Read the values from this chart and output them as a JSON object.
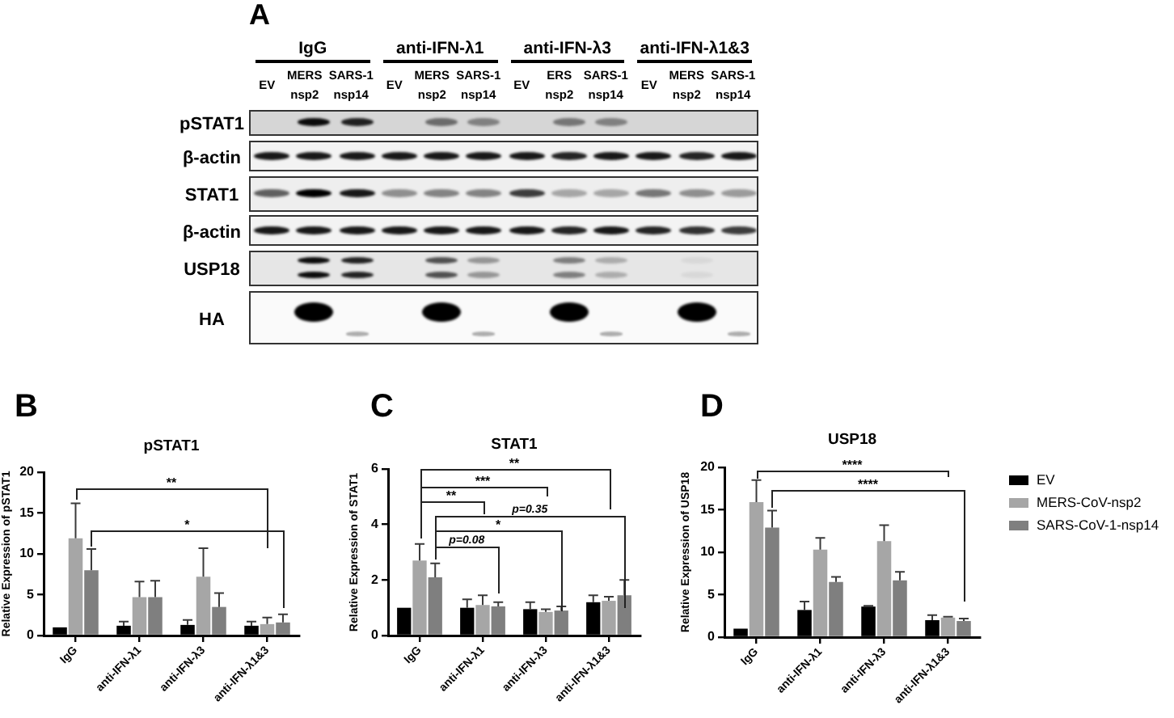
{
  "chart_data": [
    {
      "type": "other",
      "annotations": [
        "A",
        "IgG",
        "anti-IFN-λ1",
        "anti-IFN-λ3",
        "anti-IFN-λ1&3"
      ],
      "categories": [
        "EV",
        "MERS nsp2",
        "SARS-1 nsp14",
        "EV",
        "MERS nsp2",
        "SARS-1 nsp14",
        "EV",
        "ERS nsp2",
        "SARS-1 nsp14",
        "EV",
        "MERS nsp2",
        "SARS-1 nsp14"
      ],
      "y_categories": [
        "pSTAT1",
        "β-actin",
        "STAT1",
        "β-actin",
        "USP18",
        "HA"
      ]
    },
    {
      "type": "bar",
      "title": "pSTAT1",
      "ylabel": "Relative Expression of pSTAT1",
      "categories": [
        "IgG",
        "anti-IFN-λ1",
        "anti-IFN-λ3",
        "anti-IFN-λ1&3"
      ],
      "series": [
        {
          "color": "#000000",
          "values": [
            1,
            1.2,
            1.3,
            1.2
          ],
          "errors": [
            null,
            [
              1.2,
              1.7
            ],
            [
              1.3,
              1.9
            ],
            [
              1.2,
              1.7
            ]
          ]
        },
        {
          "color": "#a6a6a6",
          "values": [
            11.9,
            4.7,
            7.2,
            1.4
          ],
          "errors": [
            [
              11.9,
              16.2
            ],
            [
              4.7,
              6.6
            ],
            [
              7.2,
              10.7
            ],
            [
              1.4,
              2.2
            ]
          ]
        },
        {
          "color": "#7f7f7f",
          "values": [
            8,
            4.7,
            3.5,
            1.6
          ],
          "errors": [
            [
              8,
              10.6
            ],
            [
              4.7,
              6.7
            ],
            [
              3.5,
              5.2
            ],
            [
              1.6,
              2.6
            ]
          ]
        }
      ],
      "ylim": [
        0,
        20
      ],
      "yticks": [
        0,
        5,
        10,
        15,
        20
      ],
      "annotations": [
        "B",
        "**",
        "*"
      ]
    },
    {
      "type": "bar",
      "title": "STAT1",
      "ylabel": "Relative Expression of STAT1",
      "categories": [
        "IgG",
        "anti-IFN-λ1",
        "anti-IFN-λ3",
        "anti-IFN-λ1&3"
      ],
      "series": [
        {
          "color": "#000000",
          "values": [
            1,
            1,
            0.95,
            1.2
          ],
          "errors": [
            null,
            [
              1,
              1.3
            ],
            [
              0.95,
              1.2
            ],
            [
              1.2,
              1.45
            ]
          ]
        },
        {
          "color": "#a6a6a6",
          "values": [
            2.7,
            1.1,
            0.85,
            1.25
          ],
          "errors": [
            [
              2.7,
              3.3
            ],
            [
              1.1,
              1.45
            ],
            [
              0.85,
              0.95
            ],
            [
              1.25,
              1.4
            ]
          ]
        },
        {
          "color": "#7f7f7f",
          "values": [
            2.1,
            1.05,
            0.9,
            1.45
          ],
          "errors": [
            [
              2.1,
              2.6
            ],
            [
              1.05,
              1.2
            ],
            [
              0.9,
              1.05
            ],
            [
              1.45,
              2
            ]
          ]
        }
      ],
      "ylim": [
        0,
        6
      ],
      "yticks": [
        0,
        2,
        4,
        6
      ],
      "annotations": [
        "C",
        "**",
        "***",
        "**",
        "p=0.35",
        "*",
        "p=0.08"
      ]
    },
    {
      "type": "bar",
      "title": "USP18",
      "ylabel": "Relative Expression of USP18",
      "categories": [
        "IgG",
        "anti-IFN-λ1",
        "anti-IFN-λ3",
        "anti-IFN-λ1&3"
      ],
      "series": [
        {
          "name": "EV",
          "color": "#000000",
          "values": [
            1,
            3.2,
            3.6,
            2
          ],
          "errors": [
            null,
            [
              3.2,
              4.2
            ],
            [
              3.6,
              3.7
            ],
            [
              2,
              2.6
            ]
          ]
        },
        {
          "name": "MERS-CoV-nsp2",
          "color": "#a6a6a6",
          "values": [
            15.9,
            10.3,
            11.3,
            2.3
          ],
          "errors": [
            [
              15.9,
              18.5
            ],
            [
              10.3,
              11.7
            ],
            [
              11.3,
              13.2
            ],
            [
              2.3,
              2.4
            ]
          ]
        },
        {
          "name": "SARS-CoV-1-nsp14",
          "color": "#7f7f7f",
          "values": [
            12.9,
            6.5,
            6.7,
            1.9
          ],
          "errors": [
            [
              12.9,
              14.9
            ],
            [
              6.5,
              7.1
            ],
            [
              6.7,
              7.7
            ],
            [
              1.9,
              2.2
            ]
          ]
        }
      ],
      "ylim": [
        0,
        20
      ],
      "yticks": [
        0,
        5,
        10,
        15,
        20
      ],
      "annotations": [
        "D",
        "****",
        "****"
      ],
      "legend": "right"
    }
  ]
}
